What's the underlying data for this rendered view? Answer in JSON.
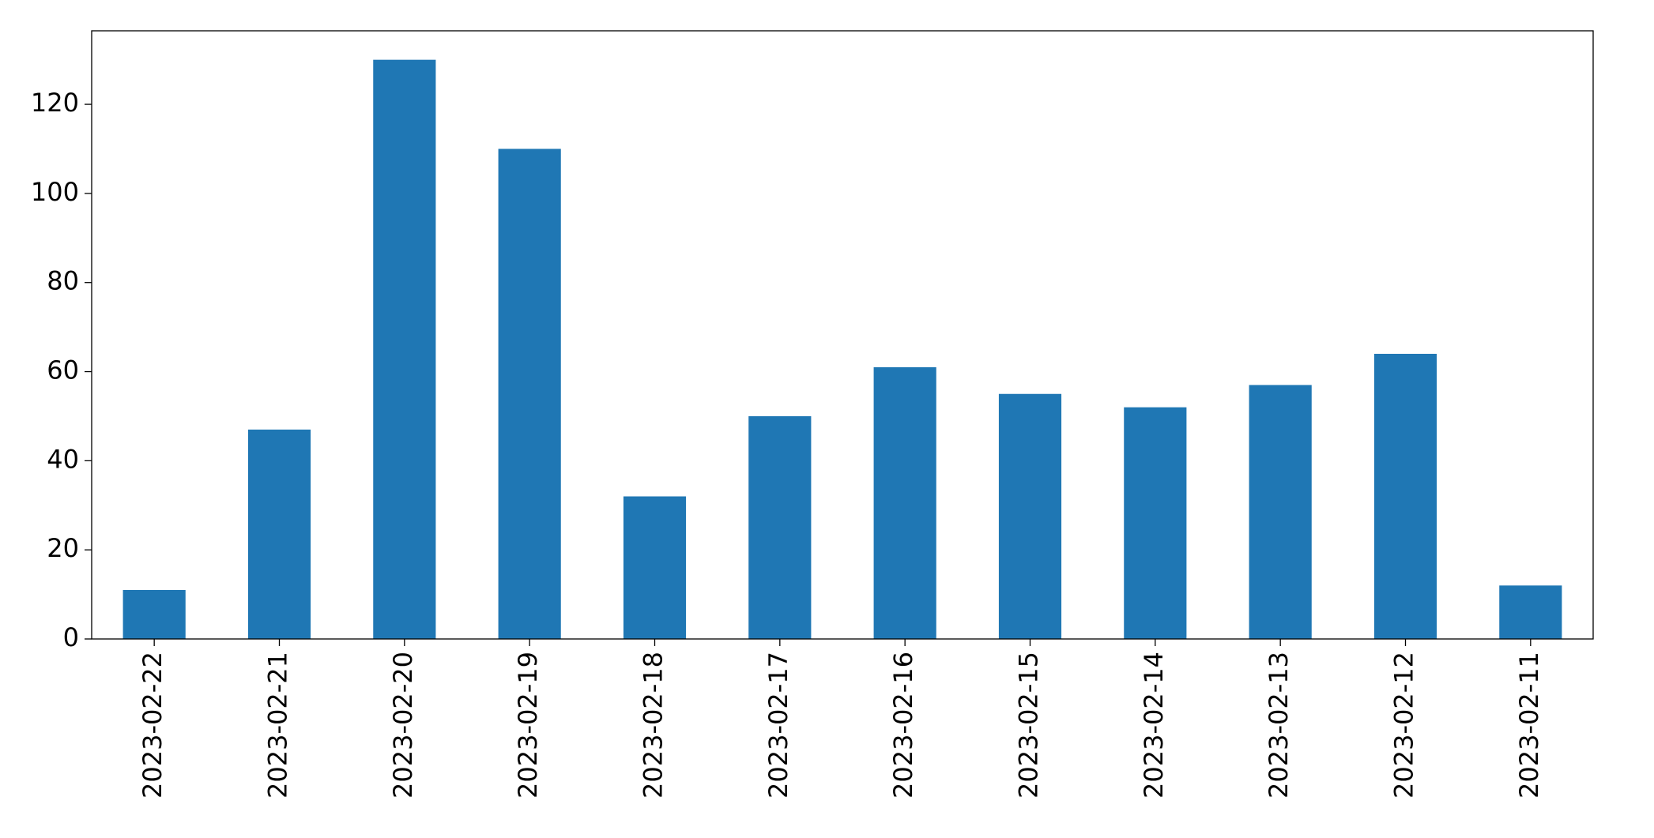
{
  "chart_data": {
    "type": "bar",
    "categories": [
      "2023-02-22",
      "2023-02-21",
      "2023-02-20",
      "2023-02-19",
      "2023-02-18",
      "2023-02-17",
      "2023-02-16",
      "2023-02-15",
      "2023-02-14",
      "2023-02-13",
      "2023-02-12",
      "2023-02-11"
    ],
    "values": [
      11,
      47,
      130,
      110,
      32,
      50,
      61,
      55,
      52,
      57,
      64,
      12
    ],
    "color": "#1f77b4",
    "ylim": [
      0,
      136.5
    ],
    "yticks": [
      0,
      20,
      40,
      60,
      80,
      100,
      120
    ],
    "grid": false
  }
}
